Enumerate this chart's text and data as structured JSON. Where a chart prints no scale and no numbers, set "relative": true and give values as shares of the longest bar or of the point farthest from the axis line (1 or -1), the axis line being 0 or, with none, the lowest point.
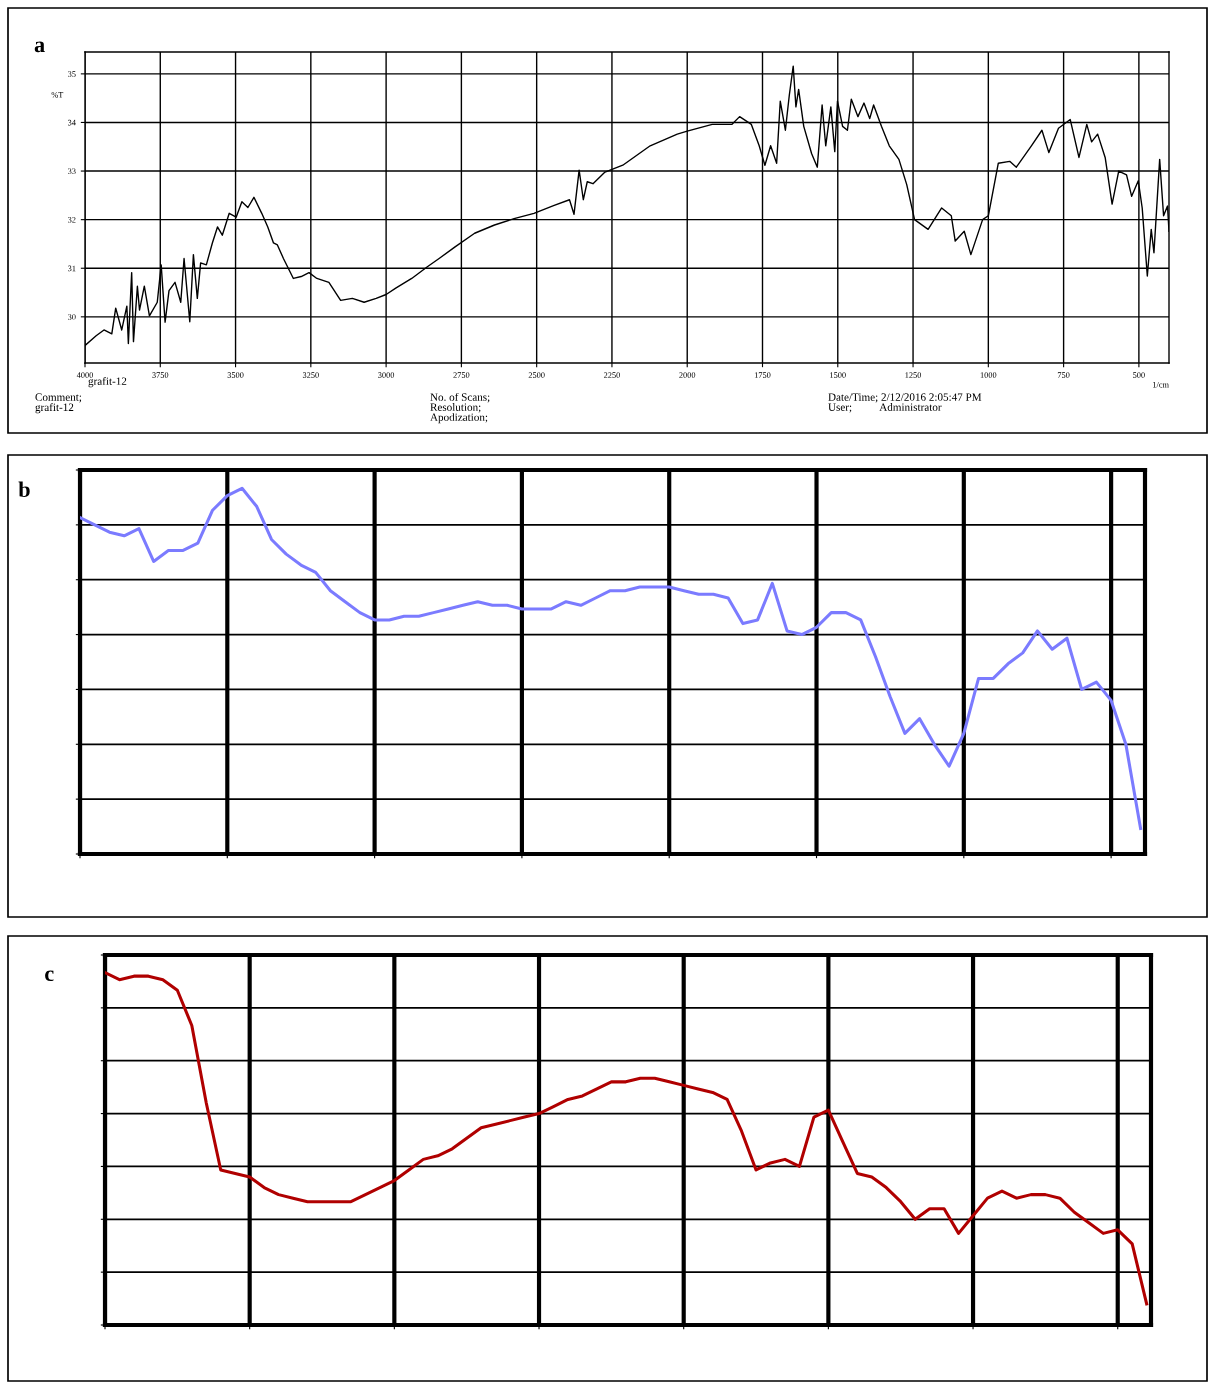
{
  "chart_data": [
    {
      "type": "line",
      "title": "a",
      "xlabel": "1/cm",
      "ylabel": "%T",
      "xlim": [
        4000,
        400
      ],
      "ylim": [
        29.05,
        35.45
      ],
      "xticks": [
        4000,
        3750,
        3500,
        3250,
        3000,
        2750,
        2500,
        2250,
        2000,
        1750,
        1500,
        1250,
        1000,
        750,
        500
      ],
      "yticks": [
        30,
        31,
        32,
        33,
        34,
        35
      ],
      "grid": true,
      "annotations": [
        "grafit-12",
        "Comment;\ngrafit-12",
        "No. of Scans;\nResolution;\nApodization;",
        "Date/Time; 2/12/2016 2:05:47 PM\nUser;          Administrator"
      ],
      "series": [
        {
          "color": "#000000",
          "x": [
            4000,
            3963,
            3937,
            3911,
            3898,
            3878,
            3861,
            3856,
            3845,
            3839,
            3826,
            3819,
            3803,
            3786,
            3760,
            3747,
            3734,
            3721,
            3701,
            3682,
            3671,
            3652,
            3640,
            3627,
            3616,
            3597,
            3577,
            3560,
            3544,
            3521,
            3498,
            3479,
            3459,
            3439,
            3413,
            3393,
            3374,
            3361,
            3341,
            3308,
            3282,
            3256,
            3230,
            3190,
            3151,
            3112,
            3073,
            3033,
            3000,
            2968,
            2915,
            2863,
            2824,
            2771,
            2706,
            2640,
            2575,
            2509,
            2444,
            2391,
            2376,
            2359,
            2345,
            2332,
            2313,
            2273,
            2214,
            2123,
            2033,
            2000,
            1917,
            1852,
            1826,
            1787,
            1761,
            1742,
            1723,
            1703,
            1691,
            1674,
            1661,
            1648,
            1639,
            1630,
            1613,
            1587,
            1568,
            1552,
            1540,
            1523,
            1510,
            1501,
            1484,
            1468,
            1455,
            1433,
            1413,
            1394,
            1381,
            1355,
            1329,
            1297,
            1271,
            1245,
            1200,
            1155,
            1123,
            1110,
            1080,
            1058,
            1019,
            1000,
            967,
            929,
            907,
            857,
            822,
            799,
            767,
            728,
            699,
            673,
            657,
            637,
            612,
            589,
            567,
            541,
            524,
            502,
            489,
            472,
            459,
            450,
            431,
            418,
            405,
            400
          ],
          "values": [
            29.41,
            29.61,
            29.73,
            29.65,
            30.18,
            29.73,
            30.22,
            29.45,
            30.91,
            29.49,
            30.63,
            30.14,
            30.63,
            30.02,
            30.3,
            31.07,
            29.89,
            30.54,
            30.71,
            30.3,
            31.2,
            29.9,
            31.28,
            30.38,
            31.11,
            31.07,
            31.52,
            31.85,
            31.68,
            32.13,
            32.05,
            32.37,
            32.25,
            32.46,
            32.13,
            31.85,
            31.52,
            31.48,
            31.2,
            30.79,
            30.83,
            30.91,
            30.79,
            30.71,
            30.34,
            30.38,
            30.3,
            30.38,
            30.46,
            30.59,
            30.79,
            31.03,
            31.2,
            31.44,
            31.72,
            31.89,
            32.02,
            32.13,
            32.29,
            32.41,
            32.11,
            33.02,
            32.41,
            32.78,
            32.74,
            32.98,
            33.12,
            33.52,
            33.76,
            33.82,
            33.96,
            33.96,
            34.12,
            33.96,
            33.52,
            33.12,
            33.52,
            33.16,
            34.44,
            33.84,
            34.56,
            35.16,
            34.32,
            34.68,
            33.92,
            33.36,
            33.08,
            34.36,
            33.52,
            34.32,
            33.4,
            34.44,
            33.92,
            33.84,
            34.48,
            34.12,
            34.4,
            34.08,
            34.36,
            33.92,
            33.52,
            33.24,
            32.72,
            32.0,
            31.8,
            32.24,
            32.08,
            31.56,
            31.76,
            31.28,
            32.0,
            32.08,
            33.16,
            33.2,
            33.08,
            33.52,
            33.84,
            33.38,
            33.88,
            34.06,
            33.28,
            33.96,
            33.6,
            33.76,
            33.28,
            32.32,
            33.0,
            32.92,
            32.48,
            32.8,
            32.24,
            30.84,
            31.8,
            31.32,
            33.24,
            32.08,
            32.28,
            31.76
          ]
        }
      ]
    },
    {
      "type": "line",
      "title": "b",
      "relative": true,
      "grid": true,
      "tick_labels": false,
      "categories": [
        null,
        null,
        null,
        null,
        null,
        null,
        null,
        null,
        null,
        null,
        null,
        null,
        null,
        null,
        null,
        null,
        null,
        null,
        null,
        null,
        null,
        null,
        null,
        null,
        null,
        null,
        null,
        null,
        null,
        null,
        null,
        null,
        null,
        null,
        null,
        null,
        null,
        null,
        null,
        null,
        null,
        null,
        null,
        null,
        null,
        null,
        null,
        null,
        null,
        null,
        null,
        null,
        null,
        null,
        null,
        null,
        null,
        null,
        null,
        null,
        null,
        null,
        null,
        null,
        null,
        null,
        null,
        null,
        null,
        null,
        null,
        null,
        null
      ],
      "series": [
        {
          "color": "#7b7bff",
          "values": [
            0.92,
            0.9,
            0.88,
            0.87,
            0.89,
            0.8,
            0.83,
            0.83,
            0.85,
            0.94,
            0.98,
            1,
            0.95,
            0.86,
            0.82,
            0.79,
            0.77,
            0.72,
            0.69,
            0.66,
            0.64,
            0.64,
            0.65,
            0.65,
            0.66,
            0.67,
            0.68,
            0.69,
            0.68,
            0.68,
            0.67,
            0.67,
            0.67,
            0.69,
            0.68,
            0.7,
            0.72,
            0.72,
            0.73,
            0.73,
            0.73,
            0.72,
            0.71,
            0.71,
            0.7,
            0.63,
            0.64,
            0.74,
            0.61,
            0.6,
            0.62,
            0.66,
            0.66,
            0.64,
            0.54,
            0.43,
            0.33,
            0.37,
            0.3,
            0.24,
            0.33,
            0.48,
            0.48,
            0.52,
            0.55,
            0.61,
            0.56,
            0.59,
            0.45,
            0.47,
            0.42,
            0.3,
            0.07
          ]
        }
      ]
    },
    {
      "type": "line",
      "title": "c",
      "relative": true,
      "grid": true,
      "tick_labels": false,
      "categories": [
        null,
        null,
        null,
        null,
        null,
        null,
        null,
        null,
        null,
        null,
        null,
        null,
        null,
        null,
        null,
        null,
        null,
        null,
        null,
        null,
        null,
        null,
        null,
        null,
        null,
        null,
        null,
        null,
        null,
        null,
        null,
        null,
        null,
        null,
        null,
        null,
        null,
        null,
        null,
        null,
        null,
        null,
        null,
        null,
        null,
        null,
        null,
        null,
        null,
        null,
        null,
        null,
        null,
        null,
        null,
        null,
        null,
        null,
        null,
        null,
        null,
        null,
        null,
        null,
        null,
        null,
        null,
        null,
        null,
        null,
        null,
        null,
        null
      ],
      "series": [
        {
          "color": "#b00000",
          "values": [
            1.0,
            0.98,
            0.99,
            0.99,
            0.98,
            0.95,
            0.85,
            0.63,
            0.44,
            0.43,
            0.42,
            0.39,
            0.37,
            0.36,
            0.35,
            0.35,
            0.35,
            0.35,
            0.37,
            0.39,
            0.41,
            0.44,
            0.47,
            0.48,
            0.5,
            0.53,
            0.56,
            0.57,
            0.58,
            0.59,
            0.6,
            0.62,
            0.64,
            0.65,
            0.67,
            0.69,
            0.69,
            0.7,
            0.7,
            0.69,
            0.68,
            0.67,
            0.66,
            0.64,
            0.55,
            0.44,
            0.46,
            0.47,
            0.45,
            0.59,
            0.61,
            0.52,
            0.43,
            0.42,
            0.39,
            0.35,
            0.3,
            0.33,
            0.33,
            0.26,
            0.31,
            0.36,
            0.38,
            0.36,
            0.37,
            0.37,
            0.36,
            0.32,
            0.29,
            0.26,
            0.27,
            0.23,
            0.06
          ]
        }
      ]
    }
  ]
}
